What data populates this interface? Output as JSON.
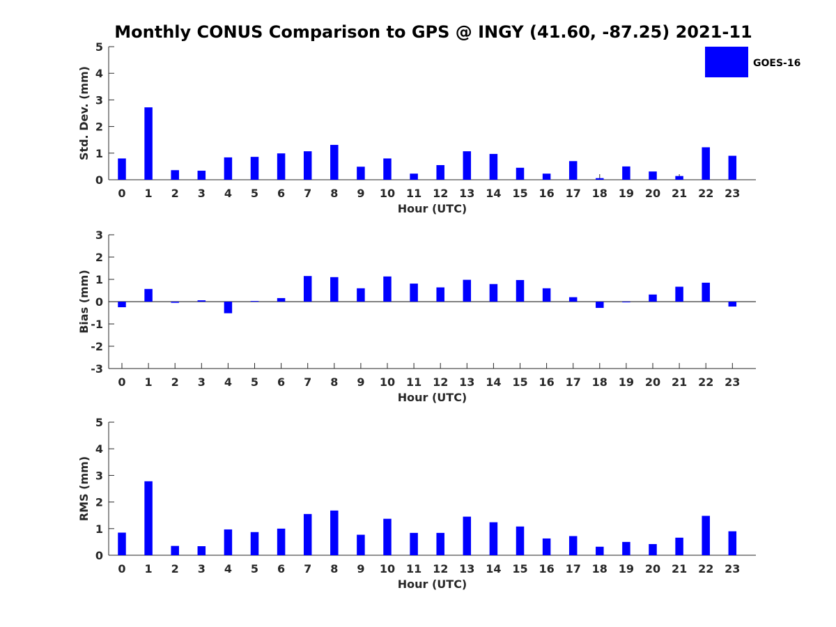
{
  "title": "Monthly CONUS Comparison to GPS @ INGY (41.60, -87.25) 2021-11",
  "legend": {
    "label": "GOES-16",
    "color": "#0000ff",
    "position": "top-right"
  },
  "chart_data": [
    {
      "type": "bar",
      "xlabel": "Hour (UTC)",
      "ylabel": "Std. Dev. (mm)",
      "ylim": [
        0,
        5
      ],
      "yticks": [
        "0",
        "1",
        "2",
        "3",
        "4",
        "5"
      ],
      "categories": [
        "0",
        "1",
        "2",
        "3",
        "4",
        "5",
        "6",
        "7",
        "8",
        "9",
        "10",
        "11",
        "12",
        "13",
        "14",
        "15",
        "16",
        "17",
        "18",
        "19",
        "20",
        "21",
        "22",
        "23"
      ],
      "series": [
        {
          "name": "GOES-16",
          "color": "#0000ff",
          "values": [
            0.8,
            2.72,
            0.36,
            0.34,
            0.84,
            0.86,
            0.99,
            1.07,
            1.31,
            0.49,
            0.8,
            0.23,
            0.55,
            1.07,
            0.97,
            0.45,
            0.23,
            0.7,
            0.06,
            0.5,
            0.31,
            0.14,
            1.22,
            0.9
          ]
        }
      ],
      "grid": false
    },
    {
      "type": "bar",
      "xlabel": "Hour (UTC)",
      "ylabel": "Bias (mm)",
      "ylim": [
        -3,
        3
      ],
      "yticks": [
        "-3",
        "-2",
        "-1",
        "0",
        "1",
        "2",
        "3"
      ],
      "categories": [
        "0",
        "1",
        "2",
        "3",
        "4",
        "5",
        "6",
        "7",
        "8",
        "9",
        "10",
        "11",
        "12",
        "13",
        "14",
        "15",
        "16",
        "17",
        "18",
        "19",
        "20",
        "21",
        "22",
        "23"
      ],
      "series": [
        {
          "name": "GOES-16",
          "color": "#0000ff",
          "values": [
            -0.25,
            0.57,
            -0.05,
            0.06,
            -0.52,
            0.03,
            0.16,
            1.15,
            1.1,
            0.6,
            1.13,
            0.81,
            0.64,
            0.98,
            0.79,
            0.97,
            0.6,
            0.2,
            -0.28,
            -0.01,
            0.32,
            0.67,
            0.85,
            -0.22
          ]
        }
      ],
      "grid": false
    },
    {
      "type": "bar",
      "xlabel": "Hour (UTC)",
      "ylabel": "RMS (mm)",
      "ylim": [
        0,
        5
      ],
      "yticks": [
        "0",
        "1",
        "2",
        "3",
        "4",
        "5"
      ],
      "categories": [
        "0",
        "1",
        "2",
        "3",
        "4",
        "5",
        "6",
        "7",
        "8",
        "9",
        "10",
        "11",
        "12",
        "13",
        "14",
        "15",
        "16",
        "17",
        "18",
        "19",
        "20",
        "21",
        "22",
        "23"
      ],
      "series": [
        {
          "name": "GOES-16",
          "color": "#0000ff",
          "values": [
            0.85,
            2.78,
            0.35,
            0.34,
            0.97,
            0.87,
            1.0,
            1.55,
            1.68,
            0.77,
            1.37,
            0.84,
            0.84,
            1.45,
            1.24,
            1.08,
            0.63,
            0.72,
            0.32,
            0.5,
            0.42,
            0.66,
            1.48,
            0.9
          ]
        }
      ],
      "grid": false
    }
  ]
}
